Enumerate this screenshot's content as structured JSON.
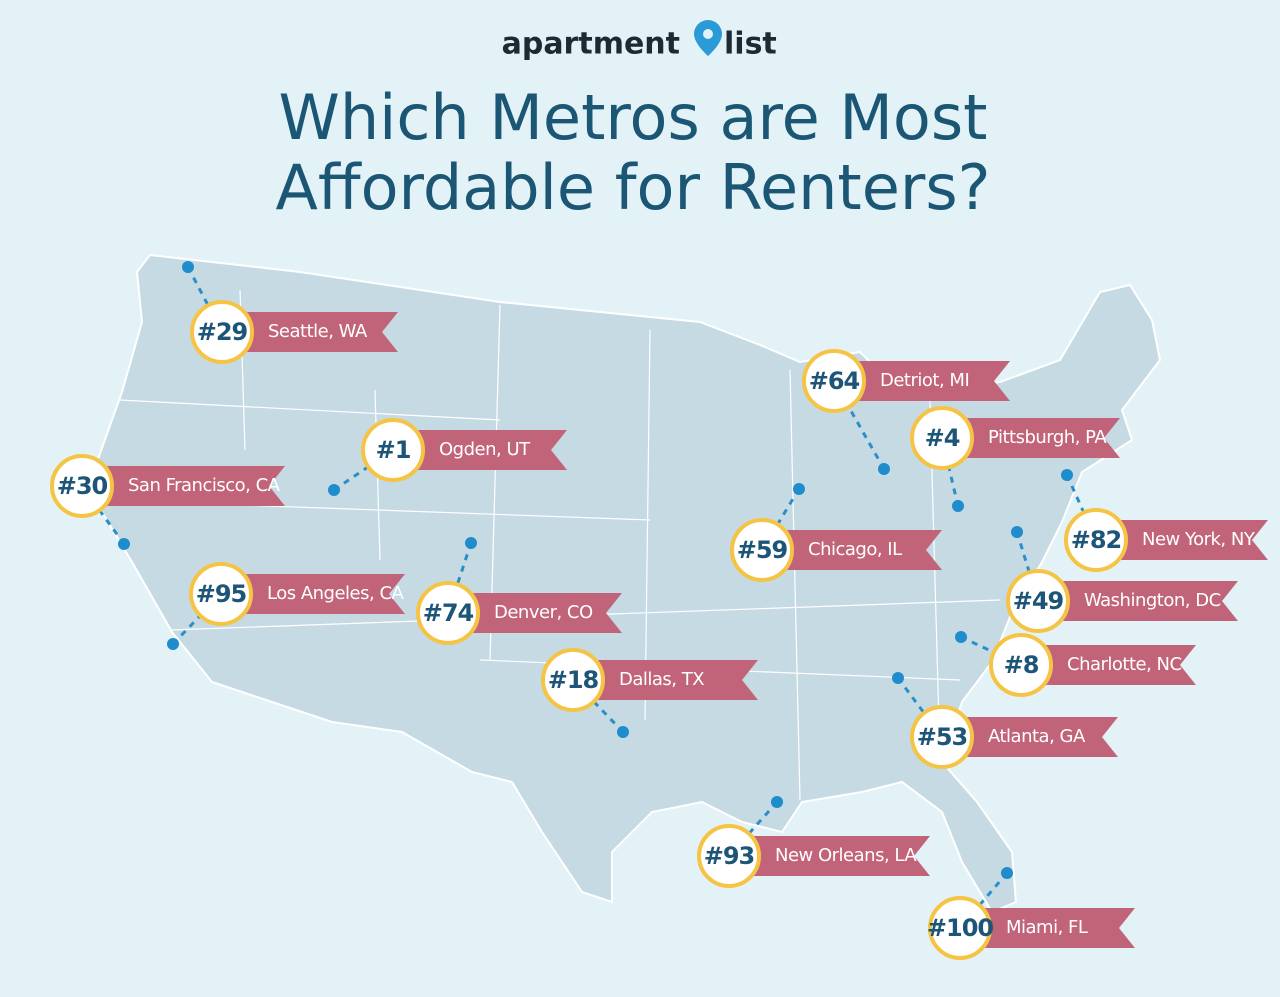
{
  "logo": {
    "left": "apartment",
    "right": "list"
  },
  "title": [
    "Which Metros are Most",
    "Affordable for Renters?"
  ],
  "markers": [
    {
      "rank": "#29",
      "city": "Seattle, WA"
    },
    {
      "rank": "#1",
      "city": "Ogden, UT"
    },
    {
      "rank": "#30",
      "city": "San Francisco, CA"
    },
    {
      "rank": "#95",
      "city": "Los Angeles, CA"
    },
    {
      "rank": "#74",
      "city": "Denver, CO"
    },
    {
      "rank": "#18",
      "city": "Dallas, TX"
    },
    {
      "rank": "#59",
      "city": "Chicago, IL"
    },
    {
      "rank": "#64",
      "city": "Detriot, MI"
    },
    {
      "rank": "#4",
      "city": "Pittsburgh, PA"
    },
    {
      "rank": "#82",
      "city": "New York, NY"
    },
    {
      "rank": "#49",
      "city": "Washington, DC"
    },
    {
      "rank": "#8",
      "city": "Charlotte, NC"
    },
    {
      "rank": "#53",
      "city": "Atlanta, GA"
    },
    {
      "rank": "#93",
      "city": "New Orleans, LA"
    },
    {
      "rank": "#100",
      "city": "Miami, FL"
    }
  ]
}
